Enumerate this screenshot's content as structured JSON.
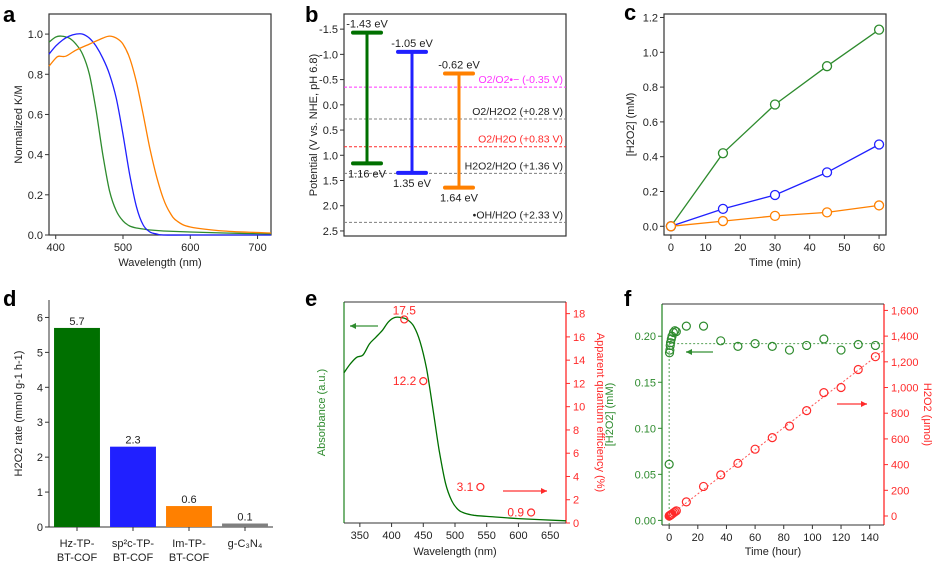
{
  "panels": {
    "a": "a",
    "b": "b",
    "c": "c",
    "d": "d",
    "e": "e",
    "f": "f"
  },
  "colors": {
    "green": "#2e8b2e",
    "darkgreen": "#007000",
    "blue": "#2020ff",
    "orange": "#ff8000",
    "gray": "#7f7f7f",
    "red": "#ff2a2a",
    "magenta": "#ff33ff"
  },
  "chart_data": [
    {
      "id": "a",
      "type": "line",
      "title": "",
      "xlabel": "Wavelength (nm)",
      "ylabel": "Normalized K/M",
      "xlim": [
        390,
        720
      ],
      "ylim": [
        0.0,
        1.1
      ],
      "xticks": [
        400,
        500,
        600,
        700
      ],
      "yticks": [
        0.0,
        0.2,
        0.4,
        0.6,
        0.8,
        1.0
      ],
      "ytick_labels": [
        "0.0",
        "0.2",
        "0.4",
        "0.6",
        "0.8",
        "1.0"
      ],
      "series": [
        {
          "name": "Hz-TP-BT-COF",
          "color": "green",
          "x": [
            390,
            400,
            408,
            420,
            430,
            440,
            450,
            460,
            470,
            480,
            490,
            500,
            510,
            520,
            530,
            540,
            560,
            600,
            650,
            720
          ],
          "y": [
            0.96,
            0.985,
            0.99,
            0.98,
            0.95,
            0.9,
            0.8,
            0.62,
            0.4,
            0.22,
            0.12,
            0.07,
            0.045,
            0.035,
            0.03,
            0.025,
            0.02,
            0.015,
            0.01,
            0.005
          ]
        },
        {
          "name": "sp2c-TP-BT-COF",
          "color": "blue",
          "x": [
            390,
            400,
            410,
            420,
            430,
            440,
            450,
            460,
            470,
            480,
            490,
            500,
            510,
            520,
            530,
            540,
            550,
            560,
            600,
            720
          ],
          "y": [
            0.9,
            0.94,
            0.97,
            0.99,
            1.0,
            1.0,
            0.98,
            0.94,
            0.88,
            0.8,
            0.68,
            0.5,
            0.3,
            0.14,
            0.05,
            0.015,
            0.005,
            0.0,
            0.0,
            0.0
          ]
        },
        {
          "name": "Im-TP-BT-COF",
          "color": "orange",
          "x": [
            390,
            400,
            405,
            415,
            430,
            450,
            470,
            480,
            490,
            500,
            510,
            520,
            530,
            540,
            550,
            560,
            570,
            580,
            600,
            650,
            720
          ],
          "y": [
            0.84,
            0.88,
            0.89,
            0.89,
            0.92,
            0.95,
            0.98,
            0.99,
            0.98,
            0.95,
            0.88,
            0.76,
            0.6,
            0.43,
            0.29,
            0.18,
            0.11,
            0.07,
            0.04,
            0.02,
            0.01
          ]
        }
      ]
    },
    {
      "id": "b",
      "type": "bar",
      "title": "",
      "ylabel": "Potential (V vs. NHE, pH 6.8)",
      "ylim": [
        -1.8,
        2.6
      ],
      "yticks": [
        -1.5,
        -1.0,
        -0.5,
        0.0,
        0.5,
        1.0,
        1.5,
        2.0,
        2.5
      ],
      "ytick_labels": [
        "-1.5",
        "-1.0",
        "-0.5",
        "0.0",
        "0.5",
        "1.0",
        "1.5",
        "2.0",
        "2.5"
      ],
      "bands": [
        {
          "name": "Hz-TP-BT-COF",
          "color": "darkgreen",
          "cb": -1.43,
          "vb": 1.16,
          "cb_label": "-1.43 eV",
          "vb_label": "1.16 eV"
        },
        {
          "name": "sp2c-TP-BT-COF",
          "color": "blue",
          "cb": -1.05,
          "vb": 1.35,
          "cb_label": "-1.05 eV",
          "vb_label": "1.35 eV"
        },
        {
          "name": "Im-TP-BT-COF",
          "color": "orange",
          "cb": -0.62,
          "vb": 1.64,
          "cb_label": "-0.62 eV",
          "vb_label": "1.64 eV"
        }
      ],
      "reference_lines": [
        {
          "value": -0.35,
          "label": "O2/O2•− (-0.35 V)",
          "color": "magenta"
        },
        {
          "value": 0.28,
          "label": "O2/H2O2 (+0.28 V)",
          "color": "gray"
        },
        {
          "value": 0.83,
          "label": "O2/H2O (+0.83 V)",
          "color": "red"
        },
        {
          "value": 1.36,
          "label": "H2O2/H2O (+1.36 V)",
          "color": "gray"
        },
        {
          "value": 2.33,
          "label": "•OH/H2O (+2.33 V)",
          "color": "gray"
        }
      ]
    },
    {
      "id": "c",
      "type": "line",
      "title": "",
      "xlabel": "Time (min)",
      "ylabel": "[H2O2] (mM)",
      "xlim": [
        -2,
        62
      ],
      "ylim": [
        -0.05,
        1.22
      ],
      "xticks": [
        0,
        10,
        20,
        30,
        40,
        50,
        60
      ],
      "yticks": [
        0.0,
        0.2,
        0.4,
        0.6,
        0.8,
        1.0,
        1.2
      ],
      "ytick_labels": [
        "0.0",
        "0.2",
        "0.4",
        "0.6",
        "0.8",
        "1.0",
        "1.2"
      ],
      "x": [
        0,
        15,
        30,
        45,
        60
      ],
      "series": [
        {
          "name": "Hz-TP-BT-COF",
          "color": "green",
          "values": [
            0.0,
            0.42,
            0.7,
            0.92,
            1.13
          ]
        },
        {
          "name": "sp2c-TP-BT-COF",
          "color": "blue",
          "values": [
            0.0,
            0.1,
            0.18,
            0.31,
            0.47
          ]
        },
        {
          "name": "Im-TP-BT-COF",
          "color": "orange",
          "values": [
            0.0,
            0.03,
            0.06,
            0.08,
            0.12
          ]
        }
      ]
    },
    {
      "id": "d",
      "type": "bar",
      "title": "",
      "ylabel": "H2O2 rate (mmol g-1 h-1)",
      "ylim": [
        0,
        6.5
      ],
      "yticks": [
        0,
        1,
        2,
        3,
        4,
        5,
        6
      ],
      "ytick_labels": [
        "0",
        "1",
        "2",
        "3",
        "4",
        "5",
        "6"
      ],
      "categories": [
        {
          "line1": "Hz-TP-",
          "line2": "BT-COF"
        },
        {
          "line1": "sp²c-TP-",
          "line2": "BT-COF"
        },
        {
          "line1": "Im-TP-",
          "line2": "BT-COF"
        },
        {
          "line1": "g-C₃N₄",
          "line2": ""
        }
      ],
      "values": [
        5.7,
        2.3,
        0.6,
        0.1
      ],
      "value_labels": [
        "5.7",
        "2.3",
        "0.6",
        "0.1"
      ],
      "colors": [
        "darkgreen",
        "blue",
        "orange",
        "gray"
      ]
    },
    {
      "id": "e",
      "type": "line",
      "title": "",
      "xlabel": "Wavelength (nm)",
      "ylabel_left": "Absorbance (a.u.)",
      "ylabel_right": "Apparent quantum efficiency (%)",
      "xlim": [
        325,
        675
      ],
      "ylim_right": [
        0,
        19
      ],
      "xticks": [
        350,
        400,
        450,
        500,
        550,
        600,
        650
      ],
      "yticks_right": [
        0,
        2,
        4,
        6,
        8,
        10,
        12,
        14,
        16,
        18
      ],
      "absorbance": {
        "x": [
          325,
          335,
          345,
          355,
          365,
          375,
          385,
          395,
          405,
          415,
          425,
          435,
          445,
          455,
          465,
          475,
          485,
          495,
          505,
          515,
          530,
          550,
          600,
          675
        ],
        "y": [
          0.68,
          0.72,
          0.75,
          0.76,
          0.81,
          0.84,
          0.87,
          0.91,
          0.93,
          0.93,
          0.92,
          0.89,
          0.82,
          0.7,
          0.52,
          0.33,
          0.18,
          0.1,
          0.06,
          0.045,
          0.035,
          0.03,
          0.02,
          0.01
        ]
      },
      "aqe_points": [
        {
          "x": 420,
          "y": 17.5,
          "label": "17.5"
        },
        {
          "x": 450,
          "y": 12.2,
          "label": "12.2"
        },
        {
          "x": 540,
          "y": 3.1,
          "label": "3.1"
        },
        {
          "x": 620,
          "y": 0.9,
          "label": "0.9"
        }
      ]
    },
    {
      "id": "f",
      "type": "scatter",
      "title": "",
      "xlabel": "Time (hour)",
      "ylabel_left": "[H2O2] (mM)",
      "ylabel_right": "H2O2 (μmol)",
      "xlim": [
        -5,
        150
      ],
      "ylim_left": [
        -0.005,
        0.235
      ],
      "ylim_right": [
        -70,
        1650
      ],
      "xticks": [
        0,
        20,
        40,
        60,
        80,
        100,
        120,
        140
      ],
      "yticks_left": [
        0.0,
        0.05,
        0.1,
        0.15,
        0.2
      ],
      "ytick_labels_left": [
        "0.00",
        "0.05",
        "0.10",
        "0.15",
        "0.20"
      ],
      "yticks_right": [
        0,
        200,
        400,
        600,
        800,
        1000,
        1200,
        1400,
        1600
      ],
      "ytick_labels_right": [
        "0",
        "200",
        "400",
        "600",
        "800",
        "1,000",
        "1,200",
        "1,400",
        "1,600"
      ],
      "concentration_mM": {
        "x": [
          0,
          0.25,
          0.5,
          0.75,
          1,
          1.5,
          2,
          3,
          4,
          5,
          12,
          24,
          36,
          48,
          60,
          72,
          84,
          96,
          108,
          120,
          132,
          144
        ],
        "y": [
          0.061,
          0.182,
          0.185,
          0.19,
          0.193,
          0.197,
          0.2,
          0.204,
          0.206,
          0.205,
          0.211,
          0.211,
          0.195,
          0.189,
          0.192,
          0.189,
          0.185,
          0.19,
          0.197,
          0.185,
          0.191,
          0.19
        ],
        "steady_level": 0.192
      },
      "amount_umol": {
        "x": [
          0,
          0.25,
          0.5,
          0.75,
          1,
          1.5,
          2,
          3,
          4,
          5,
          12,
          24,
          36,
          48,
          60,
          72,
          84,
          96,
          108,
          120,
          132,
          144
        ],
        "y": [
          0,
          2,
          4,
          6,
          8,
          12,
          16,
          24,
          32,
          40,
          110,
          230,
          320,
          410,
          520,
          610,
          700,
          820,
          960,
          1000,
          1140,
          1240
        ]
      }
    }
  ]
}
